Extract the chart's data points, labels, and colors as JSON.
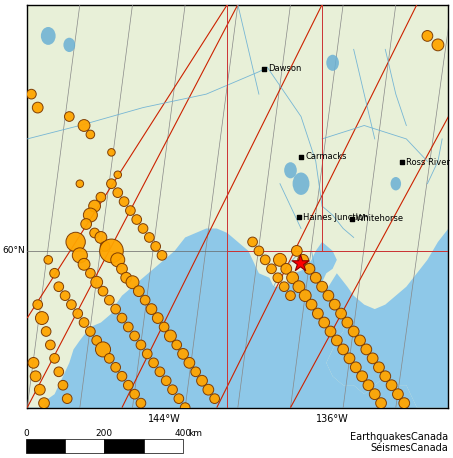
{
  "fig_width": 4.53,
  "fig_height": 4.58,
  "dpi": 100,
  "map_xlim": [
    -150.5,
    -130.5
  ],
  "map_ylim": [
    56.5,
    65.5
  ],
  "land_color": "#e8f0d8",
  "ocean_color": "#8ec8e8",
  "border_color": "#cc0000",
  "grid_color": "#999999",
  "river_color": "#6ab0d4",
  "city_label_color": "#000000",
  "city_marker": "s",
  "city_marker_color": "#000000",
  "eq_color": "#FFA500",
  "eq_edge_color": "#7a3800",
  "eq_edge_width": 0.7,
  "star_color": "#ff0000",
  "background_color": "#ffffff",
  "cities": [
    {
      "name": "Dawson",
      "lon": -139.25,
      "lat": 64.07,
      "ha": "left",
      "va": "center"
    },
    {
      "name": "Carmacks",
      "lon": -137.5,
      "lat": 62.1,
      "ha": "left",
      "va": "center"
    },
    {
      "name": "Ross River",
      "lon": -132.7,
      "lat": 61.98,
      "ha": "left",
      "va": "center"
    },
    {
      "name": "Haines Junction",
      "lon": -137.6,
      "lat": 60.75,
      "ha": "left",
      "va": "center"
    },
    {
      "name": "Whitehorse",
      "lon": -135.1,
      "lat": 60.72,
      "ha": "left",
      "va": "center"
    }
  ],
  "star_lon": -137.55,
  "star_lat": 59.72,
  "attribution_text": "EarthquakesCanada\nSéismesCanada",
  "attribution_fontsize": 7,
  "earthquakes": [
    {
      "lon": -148.5,
      "lat": 63.0,
      "r": 9
    },
    {
      "lon": -147.8,
      "lat": 62.8,
      "r": 11
    },
    {
      "lon": -147.5,
      "lat": 62.6,
      "r": 8
    },
    {
      "lon": -146.5,
      "lat": 62.2,
      "r": 7
    },
    {
      "lon": -148.0,
      "lat": 61.5,
      "r": 7
    },
    {
      "lon": -146.2,
      "lat": 61.7,
      "r": 7
    },
    {
      "lon": -147.0,
      "lat": 61.2,
      "r": 9
    },
    {
      "lon": -147.3,
      "lat": 61.0,
      "r": 11
    },
    {
      "lon": -147.5,
      "lat": 60.8,
      "r": 13
    },
    {
      "lon": -147.7,
      "lat": 60.6,
      "r": 10
    },
    {
      "lon": -147.3,
      "lat": 60.4,
      "r": 9
    },
    {
      "lon": -147.0,
      "lat": 60.3,
      "r": 11
    },
    {
      "lon": -146.8,
      "lat": 60.1,
      "r": 9
    },
    {
      "lon": -146.5,
      "lat": 60.0,
      "r": 22
    },
    {
      "lon": -146.2,
      "lat": 59.8,
      "r": 13
    },
    {
      "lon": -146.0,
      "lat": 59.6,
      "r": 10
    },
    {
      "lon": -145.8,
      "lat": 59.4,
      "r": 10
    },
    {
      "lon": -145.5,
      "lat": 59.3,
      "r": 12
    },
    {
      "lon": -145.2,
      "lat": 59.1,
      "r": 10
    },
    {
      "lon": -144.9,
      "lat": 58.9,
      "r": 9
    },
    {
      "lon": -144.6,
      "lat": 58.7,
      "r": 10
    },
    {
      "lon": -144.3,
      "lat": 58.5,
      "r": 10
    },
    {
      "lon": -144.0,
      "lat": 58.3,
      "r": 9
    },
    {
      "lon": -143.7,
      "lat": 58.1,
      "r": 11
    },
    {
      "lon": -143.4,
      "lat": 57.9,
      "r": 9
    },
    {
      "lon": -143.1,
      "lat": 57.7,
      "r": 10
    },
    {
      "lon": -142.8,
      "lat": 57.5,
      "r": 10
    },
    {
      "lon": -142.5,
      "lat": 57.3,
      "r": 9
    },
    {
      "lon": -142.2,
      "lat": 57.1,
      "r": 10
    },
    {
      "lon": -141.9,
      "lat": 56.9,
      "r": 10
    },
    {
      "lon": -141.6,
      "lat": 56.7,
      "r": 9
    },
    {
      "lon": -148.2,
      "lat": 60.2,
      "r": 18
    },
    {
      "lon": -148.0,
      "lat": 59.9,
      "r": 14
    },
    {
      "lon": -147.8,
      "lat": 59.7,
      "r": 11
    },
    {
      "lon": -147.5,
      "lat": 59.5,
      "r": 9
    },
    {
      "lon": -147.2,
      "lat": 59.3,
      "r": 11
    },
    {
      "lon": -146.9,
      "lat": 59.1,
      "r": 9
    },
    {
      "lon": -146.6,
      "lat": 58.9,
      "r": 9
    },
    {
      "lon": -146.3,
      "lat": 58.7,
      "r": 9
    },
    {
      "lon": -146.0,
      "lat": 58.5,
      "r": 9
    },
    {
      "lon": -145.7,
      "lat": 58.3,
      "r": 9
    },
    {
      "lon": -145.4,
      "lat": 58.1,
      "r": 9
    },
    {
      "lon": -145.1,
      "lat": 57.9,
      "r": 9
    },
    {
      "lon": -144.8,
      "lat": 57.7,
      "r": 9
    },
    {
      "lon": -144.5,
      "lat": 57.5,
      "r": 9
    },
    {
      "lon": -144.2,
      "lat": 57.3,
      "r": 9
    },
    {
      "lon": -143.9,
      "lat": 57.1,
      "r": 9
    },
    {
      "lon": -143.6,
      "lat": 56.9,
      "r": 9
    },
    {
      "lon": -143.3,
      "lat": 56.7,
      "r": 9
    },
    {
      "lon": -143.0,
      "lat": 56.5,
      "r": 9
    },
    {
      "lon": -149.5,
      "lat": 59.8,
      "r": 8
    },
    {
      "lon": -149.2,
      "lat": 59.5,
      "r": 9
    },
    {
      "lon": -149.0,
      "lat": 59.2,
      "r": 9
    },
    {
      "lon": -148.7,
      "lat": 59.0,
      "r": 9
    },
    {
      "lon": -148.4,
      "lat": 58.8,
      "r": 9
    },
    {
      "lon": -148.1,
      "lat": 58.6,
      "r": 9
    },
    {
      "lon": -147.8,
      "lat": 58.4,
      "r": 9
    },
    {
      "lon": -147.5,
      "lat": 58.2,
      "r": 9
    },
    {
      "lon": -147.2,
      "lat": 58.0,
      "r": 9
    },
    {
      "lon": -146.9,
      "lat": 57.8,
      "r": 14
    },
    {
      "lon": -146.6,
      "lat": 57.6,
      "r": 9
    },
    {
      "lon": -146.3,
      "lat": 57.4,
      "r": 9
    },
    {
      "lon": -146.0,
      "lat": 57.2,
      "r": 9
    },
    {
      "lon": -145.7,
      "lat": 57.0,
      "r": 9
    },
    {
      "lon": -145.4,
      "lat": 56.8,
      "r": 9
    },
    {
      "lon": -145.1,
      "lat": 56.6,
      "r": 9
    },
    {
      "lon": -138.5,
      "lat": 59.8,
      "r": 12
    },
    {
      "lon": -138.2,
      "lat": 59.6,
      "r": 10
    },
    {
      "lon": -137.9,
      "lat": 59.4,
      "r": 11
    },
    {
      "lon": -137.6,
      "lat": 59.2,
      "r": 11
    },
    {
      "lon": -137.3,
      "lat": 59.0,
      "r": 11
    },
    {
      "lon": -137.0,
      "lat": 58.8,
      "r": 10
    },
    {
      "lon": -136.7,
      "lat": 58.6,
      "r": 10
    },
    {
      "lon": -136.4,
      "lat": 58.4,
      "r": 10
    },
    {
      "lon": -136.1,
      "lat": 58.2,
      "r": 10
    },
    {
      "lon": -135.8,
      "lat": 58.0,
      "r": 10
    },
    {
      "lon": -135.5,
      "lat": 57.8,
      "r": 10
    },
    {
      "lon": -135.2,
      "lat": 57.6,
      "r": 10
    },
    {
      "lon": -134.9,
      "lat": 57.4,
      "r": 10
    },
    {
      "lon": -134.6,
      "lat": 57.2,
      "r": 10
    },
    {
      "lon": -134.3,
      "lat": 57.0,
      "r": 10
    },
    {
      "lon": -134.0,
      "lat": 56.8,
      "r": 10
    },
    {
      "lon": -133.7,
      "lat": 56.6,
      "r": 10
    },
    {
      "lon": -137.7,
      "lat": 60.0,
      "r": 10
    },
    {
      "lon": -137.4,
      "lat": 59.8,
      "r": 10
    },
    {
      "lon": -137.1,
      "lat": 59.6,
      "r": 10
    },
    {
      "lon": -136.8,
      "lat": 59.4,
      "r": 10
    },
    {
      "lon": -136.5,
      "lat": 59.2,
      "r": 10
    },
    {
      "lon": -136.2,
      "lat": 59.0,
      "r": 10
    },
    {
      "lon": -135.9,
      "lat": 58.8,
      "r": 10
    },
    {
      "lon": -135.6,
      "lat": 58.6,
      "r": 10
    },
    {
      "lon": -135.3,
      "lat": 58.4,
      "r": 10
    },
    {
      "lon": -135.0,
      "lat": 58.2,
      "r": 10
    },
    {
      "lon": -134.7,
      "lat": 58.0,
      "r": 10
    },
    {
      "lon": -134.4,
      "lat": 57.8,
      "r": 10
    },
    {
      "lon": -134.1,
      "lat": 57.6,
      "r": 10
    },
    {
      "lon": -133.8,
      "lat": 57.4,
      "r": 10
    },
    {
      "lon": -133.5,
      "lat": 57.2,
      "r": 10
    },
    {
      "lon": -133.2,
      "lat": 57.0,
      "r": 10
    },
    {
      "lon": -132.9,
      "lat": 56.8,
      "r": 10
    },
    {
      "lon": -132.6,
      "lat": 56.6,
      "r": 10
    },
    {
      "lon": -150.0,
      "lat": 58.8,
      "r": 9
    },
    {
      "lon": -149.8,
      "lat": 58.5,
      "r": 12
    },
    {
      "lon": -149.6,
      "lat": 58.2,
      "r": 9
    },
    {
      "lon": -149.4,
      "lat": 57.9,
      "r": 9
    },
    {
      "lon": -149.2,
      "lat": 57.6,
      "r": 9
    },
    {
      "lon": -149.0,
      "lat": 57.3,
      "r": 9
    },
    {
      "lon": -148.8,
      "lat": 57.0,
      "r": 9
    },
    {
      "lon": -148.6,
      "lat": 56.7,
      "r": 9
    },
    {
      "lon": -150.2,
      "lat": 57.5,
      "r": 10
    },
    {
      "lon": -150.1,
      "lat": 57.2,
      "r": 10
    },
    {
      "lon": -149.9,
      "lat": 56.9,
      "r": 10
    },
    {
      "lon": -149.7,
      "lat": 56.6,
      "r": 10
    },
    {
      "lon": -139.8,
      "lat": 60.2,
      "r": 9
    },
    {
      "lon": -139.5,
      "lat": 60.0,
      "r": 9
    },
    {
      "lon": -139.2,
      "lat": 59.8,
      "r": 9
    },
    {
      "lon": -138.9,
      "lat": 59.6,
      "r": 9
    },
    {
      "lon": -138.6,
      "lat": 59.4,
      "r": 9
    },
    {
      "lon": -138.3,
      "lat": 59.2,
      "r": 9
    },
    {
      "lon": -138.0,
      "lat": 59.0,
      "r": 9
    },
    {
      "lon": -146.5,
      "lat": 61.5,
      "r": 9
    },
    {
      "lon": -146.2,
      "lat": 61.3,
      "r": 9
    },
    {
      "lon": -145.9,
      "lat": 61.1,
      "r": 9
    },
    {
      "lon": -145.6,
      "lat": 60.9,
      "r": 9
    },
    {
      "lon": -145.3,
      "lat": 60.7,
      "r": 9
    },
    {
      "lon": -145.0,
      "lat": 60.5,
      "r": 9
    },
    {
      "lon": -144.7,
      "lat": 60.3,
      "r": 9
    },
    {
      "lon": -144.4,
      "lat": 60.1,
      "r": 9
    },
    {
      "lon": -144.1,
      "lat": 59.9,
      "r": 9
    },
    {
      "lon": -131.5,
      "lat": 64.8,
      "r": 10
    },
    {
      "lon": -131.0,
      "lat": 64.6,
      "r": 11
    },
    {
      "lon": -150.3,
      "lat": 63.5,
      "r": 9
    },
    {
      "lon": -150.0,
      "lat": 63.2,
      "r": 10
    }
  ]
}
